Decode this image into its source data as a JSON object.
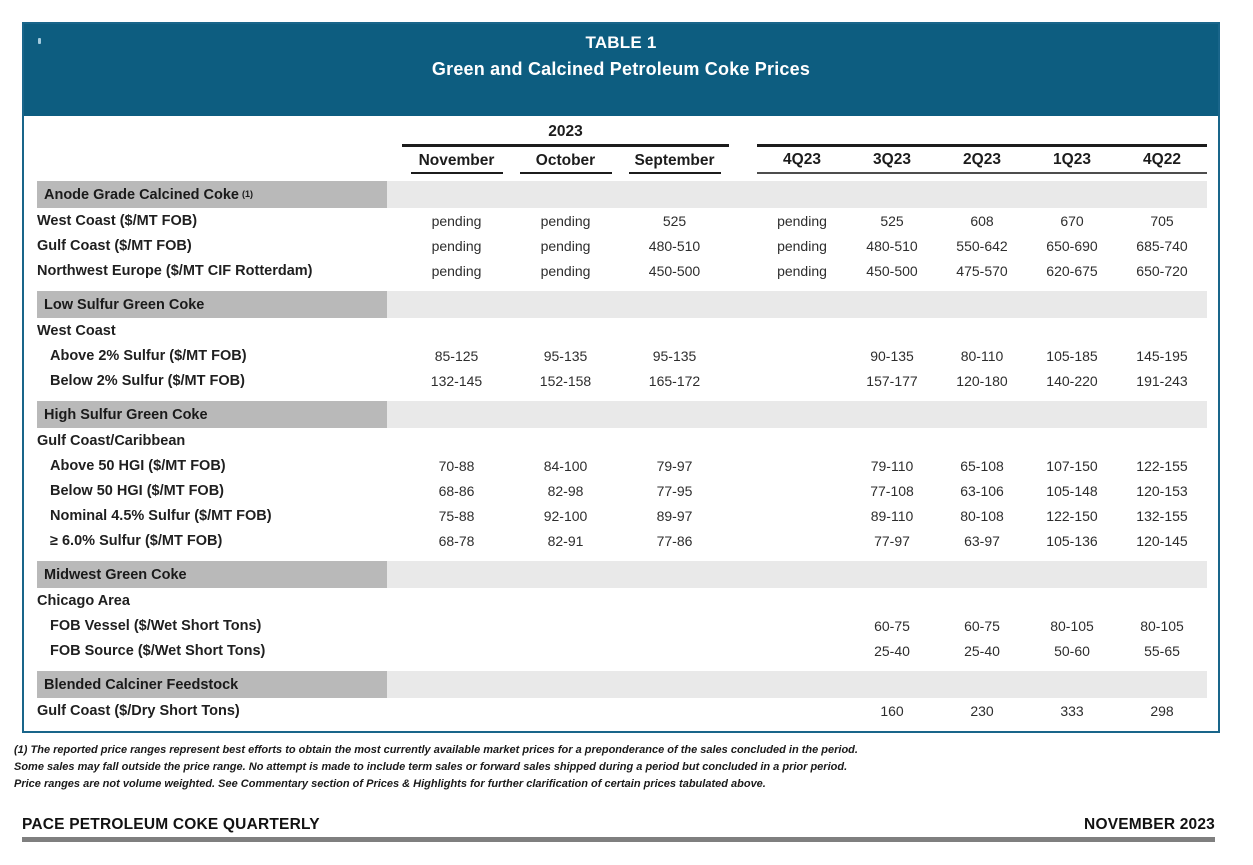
{
  "header": {
    "table_number": "TABLE 1",
    "title": "Green and Calcined Petroleum Coke Prices"
  },
  "colors": {
    "header_bg": "#0d5d80",
    "table_border": "#19658a",
    "section_band_dark": "#b9b9b9",
    "section_band_light": "#e9e9e9",
    "footer_rule": "#7f7f7f"
  },
  "columns": {
    "year_group": "2023",
    "months": [
      "November",
      "October",
      "September"
    ],
    "quarters": [
      "4Q23",
      "3Q23",
      "2Q23",
      "1Q23",
      "4Q22"
    ]
  },
  "sections": [
    {
      "header": "Anode Grade Calcined Coke",
      "header_sup": "(1)",
      "rows": [
        {
          "label": "West Coast ($/MT FOB)",
          "values": [
            "pending",
            "pending",
            "525",
            "pending",
            "525",
            "608",
            "670",
            "705"
          ]
        },
        {
          "label": "Gulf Coast ($/MT FOB)",
          "values": [
            "pending",
            "pending",
            "480-510",
            "pending",
            "480-510",
            "550-642",
            "650-690",
            "685-740"
          ]
        },
        {
          "label": "Northwest Europe ($/MT CIF Rotterdam)",
          "values": [
            "pending",
            "pending",
            "450-500",
            "pending",
            "450-500",
            "475-570",
            "620-675",
            "650-720"
          ]
        }
      ]
    },
    {
      "header": "Low Sulfur Green Coke",
      "rows": [
        {
          "label": "West Coast"
        },
        {
          "label": "Above 2% Sulfur ($/MT FOB)",
          "indent": true,
          "values": [
            "85-125",
            "95-135",
            "95-135",
            "",
            "90-135",
            "80-110",
            "105-185",
            "145-195"
          ]
        },
        {
          "label": "Below 2% Sulfur ($/MT FOB)",
          "indent": true,
          "values": [
            "132-145",
            "152-158",
            "165-172",
            "",
            "157-177",
            "120-180",
            "140-220",
            "191-243"
          ]
        }
      ]
    },
    {
      "header": "High Sulfur Green Coke",
      "rows": [
        {
          "label": "Gulf Coast/Caribbean"
        },
        {
          "label": "Above 50 HGI ($/MT FOB)",
          "indent": true,
          "values": [
            "70-88",
            "84-100",
            "79-97",
            "",
            "79-110",
            "65-108",
            "107-150",
            "122-155"
          ]
        },
        {
          "label": "Below 50 HGI ($/MT FOB)",
          "indent": true,
          "values": [
            "68-86",
            "82-98",
            "77-95",
            "",
            "77-108",
            "63-106",
            "105-148",
            "120-153"
          ]
        },
        {
          "label": "Nominal 4.5% Sulfur ($/MT FOB)",
          "indent": true,
          "values": [
            "75-88",
            "92-100",
            "89-97",
            "",
            "89-110",
            "80-108",
            "122-150",
            "132-155"
          ]
        },
        {
          "label": "≥ 6.0% Sulfur ($/MT FOB)",
          "indent": true,
          "values": [
            "68-78",
            "82-91",
            "77-86",
            "",
            "77-97",
            "63-97",
            "105-136",
            "120-145"
          ]
        }
      ]
    },
    {
      "header": "Midwest Green Coke",
      "rows": [
        {
          "label": "Chicago Area"
        },
        {
          "label": "FOB Vessel ($/Wet Short Tons)",
          "indent": true,
          "values": [
            "",
            "",
            "",
            "",
            "60-75",
            "60-75",
            "80-105",
            "80-105"
          ]
        },
        {
          "label": "FOB Source ($/Wet Short Tons)",
          "indent": true,
          "values": [
            "",
            "",
            "",
            "",
            "25-40",
            "25-40",
            "50-60",
            "55-65"
          ]
        }
      ]
    },
    {
      "header": "Blended Calciner Feedstock",
      "rows": [
        {
          "label": "Gulf Coast ($/Dry Short Tons)",
          "values": [
            "",
            "",
            "",
            "",
            "160",
            "230",
            "333",
            "298"
          ]
        }
      ]
    }
  ],
  "footnotes": [
    "(1) The reported price ranges represent best efforts to obtain the most currently available market prices for a preponderance of the sales concluded in the period.",
    "Some sales may fall outside the price range. No attempt is made to include term sales or forward sales shipped during a period but concluded in a prior period.",
    "Price ranges are not volume weighted. See Commentary section of Prices & Highlights for further clarification of certain prices tabulated above."
  ],
  "footer": {
    "left": "PACE PETROLEUM COKE QUARTERLY",
    "right": "NOVEMBER 2023"
  }
}
